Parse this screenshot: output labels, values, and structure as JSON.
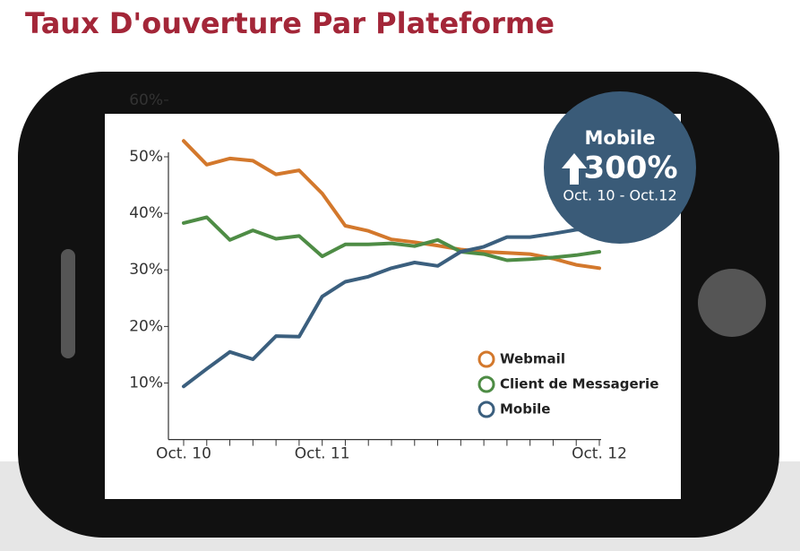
{
  "chart_data": {
    "type": "line",
    "title": "Taux D'ouverture Par Plateforme",
    "categories": [
      "Oct. 10",
      null,
      null,
      null,
      null,
      null,
      "Oct. 11",
      null,
      null,
      null,
      null,
      null,
      null,
      null,
      null,
      null,
      null,
      null,
      "Oct. 12"
    ],
    "series": [
      {
        "name": "Webmail",
        "color": "#d3782c",
        "values": [
          52.8,
          48.6,
          49.7,
          49.3,
          46.9,
          47.6,
          43.5,
          37.8,
          36.9,
          35.4,
          34.9,
          34.3,
          33.6,
          33.2,
          33.0,
          32.8,
          32.0,
          30.9,
          30.3
        ]
      },
      {
        "name": "Client de Messagerie",
        "color": "#4e8c45",
        "values": [
          38.3,
          39.3,
          35.3,
          37.0,
          35.5,
          36.0,
          32.4,
          34.5,
          34.5,
          34.7,
          34.2,
          35.3,
          33.2,
          32.8,
          31.7,
          31.9,
          32.2,
          32.6,
          33.2
        ]
      },
      {
        "name": "Mobile",
        "color": "#3b5f7e",
        "values": [
          9.4,
          12.5,
          15.5,
          14.2,
          18.3,
          18.2,
          25.3,
          27.9,
          28.8,
          30.3,
          31.3,
          30.7,
          33.2,
          34.1,
          35.8,
          35.8,
          36.4,
          37.1,
          37.3
        ]
      }
    ],
    "ylim": [
      0,
      60
    ],
    "yticks": [
      {
        "value": 10,
        "label": "10%"
      },
      {
        "value": 20,
        "label": "20%"
      },
      {
        "value": 30,
        "label": "30%"
      },
      {
        "value": 40,
        "label": "40%"
      },
      {
        "value": 50,
        "label": "50%"
      },
      {
        "value": 60,
        "label": "60%"
      }
    ],
    "annotations": {
      "badge_title": "Mobile",
      "badge_value": "300%",
      "badge_period": "Oct. 10 - Oct.12"
    }
  }
}
